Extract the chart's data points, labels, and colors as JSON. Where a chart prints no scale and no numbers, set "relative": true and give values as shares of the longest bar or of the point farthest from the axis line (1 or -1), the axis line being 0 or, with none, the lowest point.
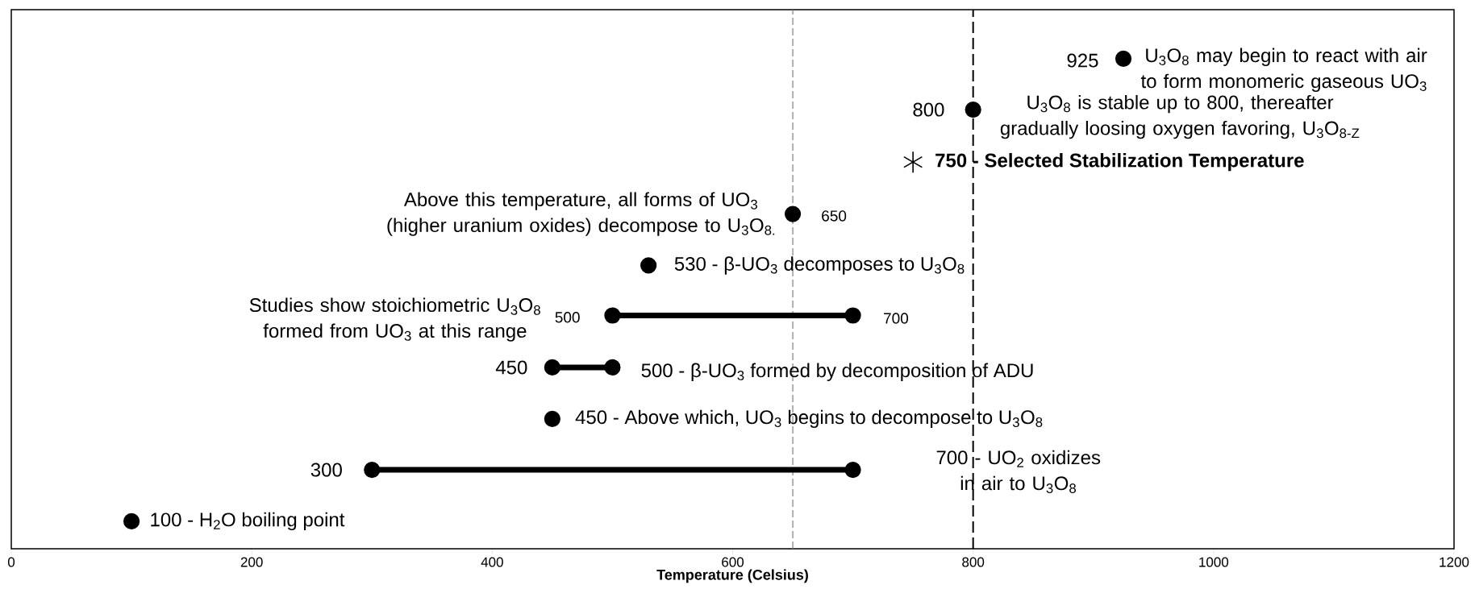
{
  "chart_data": {
    "type": "scatter",
    "xlabel": "Temperature (Celsius)",
    "xlim": [
      0,
      1200
    ],
    "xticks": [
      0,
      200,
      400,
      600,
      800,
      1000,
      1200
    ],
    "relative": true,
    "series": [
      {
        "type": "line",
        "color": "#000000",
        "marker": "circle",
        "x": [
          300,
          700
        ],
        "values": [
          0.161,
          0.161
        ]
      },
      {
        "type": "line",
        "color": "#000000",
        "marker": "circle",
        "x": [
          450,
          500
        ],
        "values": [
          0.37,
          0.37
        ]
      },
      {
        "type": "line",
        "color": "#000000",
        "marker": "circle",
        "x": [
          500,
          700
        ],
        "values": [
          0.476,
          0.476
        ]
      },
      {
        "color": "#000000",
        "marker": "circle",
        "x": [
          100,
          450,
          530,
          650,
          800,
          925
        ],
        "values": [
          0.056,
          0.265,
          0.578,
          0.683,
          0.896,
          1.0
        ]
      },
      {
        "color": "#000000",
        "marker": "cross",
        "x": [
          750
        ],
        "values": [
          0.789
        ]
      }
    ],
    "ref_lines": [
      {
        "axis": "x",
        "value": 650,
        "color": "#808080",
        "line_style": "dashed"
      },
      {
        "axis": "x",
        "value": 800,
        "color": "#000000",
        "line_style": "dashed"
      }
    ],
    "annotations": [
      {
        "text": "925",
        "x": 925,
        "y": 1.0
      },
      {
        "text": "U$_{3}$O$_{8}$ may begin to react with air to form monomeric gaseous UO$_{3}$",
        "x": 925,
        "y": 1.0
      },
      {
        "text": "800",
        "x": 800,
        "y": 0.896
      },
      "U$_{3}$O$_{8}$ is stable up to 800, thereafter gradually loosing oxygen favoring, U$_{3}$O$_{8-Z}$",
      {
        "text": "750 - Selected Stabilization Temperature",
        "x": 750,
        "y": 0.789
      },
      {
        "text": "Above this temperature, all forms of UO$_{3}$ (higher uranium oxides) decompose to U$_{3}$O$_{8.}$",
        "x": 650,
        "y": 0.683
      },
      {
        "text": "650",
        "x": 650,
        "y": 0.683
      },
      {
        "text": "530  -  β-UO$_{3}$ decomposes to U$_{3}$O$_{8}$",
        "x": 530,
        "y": 0.578
      },
      "Studies show stoichiometric U$_{3}$O$_{8}$ formed from UO$_{3}$ at this range",
      {
        "text": "500",
        "x": 500,
        "y": 0.476
      },
      {
        "text": "700",
        "x": 700,
        "y": 0.476
      },
      {
        "text": "450",
        "x": 450,
        "y": 0.37
      },
      {
        "text": "500  -  β-UO$_{3}$ formed by decomposition of ADU",
        "x": 500,
        "y": 0.37
      },
      {
        "text": "450 - Above which, UO$_{3}$ begins to decompose to U$_{3}$O$_{8}$",
        "x": 450,
        "y": 0.265
      },
      {
        "text": "300",
        "x": 300,
        "y": 0.161
      },
      "700 - UO$_{2}$ oxidizes in air to U$_{3}$O$_{8}$",
      {
        "text": "100 - H$_{2}$O boiling point",
        "x": 100,
        "y": 0.056
      }
    ]
  }
}
